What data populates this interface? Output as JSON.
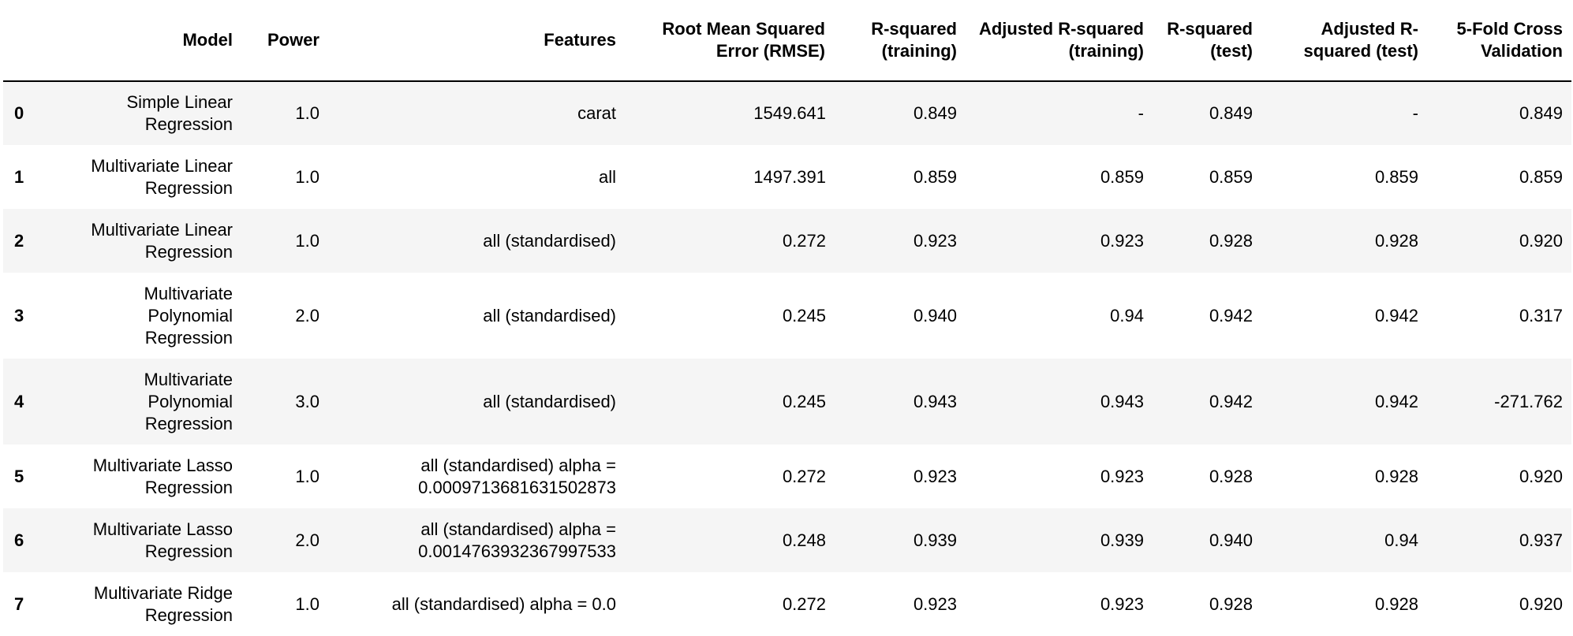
{
  "table": {
    "index_header": "",
    "columns": [
      "Model",
      "Power",
      "Features",
      "Root Mean Squared Error (RMSE)",
      "R-squared (training)",
      "Adjusted R-squared (training)",
      "R-squared (test)",
      "Adjusted R-squared (test)",
      "5-Fold Cross Validation"
    ],
    "rows": [
      {
        "index": "0",
        "cells": [
          "Simple Linear Regression",
          "1.0",
          "carat",
          "1549.641",
          "0.849",
          "-",
          "0.849",
          "-",
          "0.849"
        ]
      },
      {
        "index": "1",
        "cells": [
          "Multivariate Linear Regression",
          "1.0",
          "all",
          "1497.391",
          "0.859",
          "0.859",
          "0.859",
          "0.859",
          "0.859"
        ]
      },
      {
        "index": "2",
        "cells": [
          "Multivariate Linear Regression",
          "1.0",
          "all (standardised)",
          "0.272",
          "0.923",
          "0.923",
          "0.928",
          "0.928",
          "0.920"
        ]
      },
      {
        "index": "3",
        "cells": [
          "Multivariate Polynomial Regression",
          "2.0",
          "all (standardised)",
          "0.245",
          "0.940",
          "0.94",
          "0.942",
          "0.942",
          "0.317"
        ]
      },
      {
        "index": "4",
        "cells": [
          "Multivariate Polynomial Regression",
          "3.0",
          "all (standardised)",
          "0.245",
          "0.943",
          "0.943",
          "0.942",
          "0.942",
          "-271.762"
        ]
      },
      {
        "index": "5",
        "cells": [
          "Multivariate Lasso Regression",
          "1.0",
          "all (standardised) alpha = 0.0009713681631502873",
          "0.272",
          "0.923",
          "0.923",
          "0.928",
          "0.928",
          "0.920"
        ]
      },
      {
        "index": "6",
        "cells": [
          "Multivariate Lasso Regression",
          "2.0",
          "all (standardised) alpha = 0.0014763932367997533",
          "0.248",
          "0.939",
          "0.939",
          "0.940",
          "0.94",
          "0.937"
        ]
      },
      {
        "index": "7",
        "cells": [
          "Multivariate Ridge Regression",
          "1.0",
          "all (standardised) alpha = 0.0",
          "0.272",
          "0.923",
          "0.923",
          "0.928",
          "0.928",
          "0.920"
        ]
      }
    ]
  }
}
